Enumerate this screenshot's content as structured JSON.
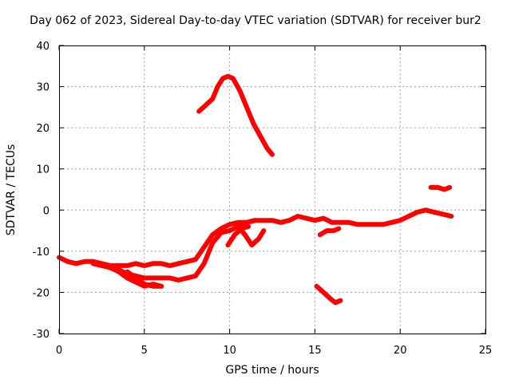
{
  "chart_data": {
    "type": "scatter",
    "title": "Day 062 of 2023, Sidereal Day-to-day VTEC variation (SDTVAR) for receiver bur2",
    "xlabel": "GPS time / hours",
    "ylabel": "SDTVAR / TECUs",
    "xlim": [
      0,
      25
    ],
    "ylim": [
      -30,
      40
    ],
    "xticks": [
      "0",
      "5",
      "10",
      "15",
      "20",
      "25"
    ],
    "yticks": [
      "-30",
      "-20",
      "-10",
      "0",
      "10",
      "20",
      "30",
      "40"
    ],
    "grid": true,
    "color": "#ff0000",
    "series": [
      {
        "name": "track-1",
        "x": [
          0.0,
          0.5,
          1.0,
          1.5,
          2.0,
          2.5,
          3.0,
          3.5,
          4.0,
          4.5,
          5.0,
          5.5,
          6.0,
          6.5,
          7.0,
          7.5,
          8.0,
          8.5,
          9.0,
          9.5,
          10.0,
          10.5,
          11.0,
          11.5,
          12.0,
          12.5,
          13.0,
          13.5,
          14.0,
          14.5,
          15.0,
          15.5,
          16.0,
          16.5,
          17.0,
          17.5,
          18.0,
          18.5,
          19.0,
          19.5,
          20.0,
          20.5,
          21.0,
          21.5,
          22.0,
          22.5,
          23.0
        ],
        "y": [
          -11.5,
          -12.5,
          -13,
          -12.5,
          -12.5,
          -13,
          -13.5,
          -13.5,
          -13.5,
          -13,
          -13.5,
          -13,
          -13,
          -13.5,
          -13,
          -12.5,
          -12,
          -9,
          -6,
          -4.5,
          -3.5,
          -3,
          -3,
          -2.5,
          -2.5,
          -2.5,
          -3,
          -2.5,
          -1.5,
          -2,
          -2.5,
          -2,
          -3,
          -3,
          -3,
          -3.5,
          -3.5,
          -3.5,
          -3.5,
          -3,
          -2.5,
          -1.5,
          -0.5,
          0,
          -0.5,
          -1,
          -1.5
        ]
      },
      {
        "name": "track-2",
        "x": [
          2.0,
          2.5,
          3.0,
          3.5,
          4.0,
          4.5,
          5.0,
          5.5,
          6.0,
          6.5,
          7.0,
          7.5,
          8.0,
          8.5,
          9.0,
          9.5,
          10.0,
          10.5,
          11.0,
          11.5
        ],
        "y": [
          -13,
          -13.5,
          -14,
          -14.5,
          -15.5,
          -16,
          -16.5,
          -16.5,
          -16.5,
          -16.5,
          -17,
          -16.5,
          -16,
          -13,
          -8,
          -5.5,
          -5,
          -4,
          -3,
          -2.5
        ]
      },
      {
        "name": "track-3",
        "x": [
          3.0,
          3.5,
          4.0,
          4.5,
          5.0,
          5.5,
          6.0
        ],
        "y": [
          -14,
          -15,
          -16.5,
          -17.5,
          -18.5,
          -18,
          -18.5
        ]
      },
      {
        "name": "track-4",
        "x": [
          4.0,
          4.5,
          5.0,
          5.5,
          6.0
        ],
        "y": [
          -15,
          -16.5,
          -18,
          -18.5,
          -18.5
        ]
      },
      {
        "name": "track-5",
        "x": [
          8.2,
          8.6,
          9.0,
          9.3,
          9.6,
          9.9,
          10.2,
          10.6,
          11.0,
          11.4,
          11.8,
          12.2,
          12.5
        ],
        "y": [
          24,
          25.5,
          27,
          30,
          32,
          32.5,
          32,
          29,
          25,
          21,
          18,
          15,
          13.5
        ]
      },
      {
        "name": "track-6",
        "x": [
          10.5,
          10.9,
          11.3,
          11.7,
          12.0
        ],
        "y": [
          -4,
          -6,
          -8.5,
          -7,
          -5
        ]
      },
      {
        "name": "track-7",
        "x": [
          9.9,
          10.3,
          10.7,
          11.1
        ],
        "y": [
          -8.5,
          -6,
          -4.5,
          -4
        ]
      },
      {
        "name": "track-8",
        "x": [
          15.3,
          15.7,
          16.1,
          16.4
        ],
        "y": [
          -6,
          -5,
          -5,
          -4.5
        ]
      },
      {
        "name": "track-9",
        "x": [
          15.1,
          15.5,
          15.9,
          16.2,
          16.5
        ],
        "y": [
          -18.5,
          -20,
          -21.5,
          -22.5,
          -22
        ]
      },
      {
        "name": "track-10",
        "x": [
          21.8,
          22.2,
          22.6,
          22.9
        ],
        "y": [
          5.5,
          5.5,
          5,
          5.5
        ]
      }
    ]
  }
}
